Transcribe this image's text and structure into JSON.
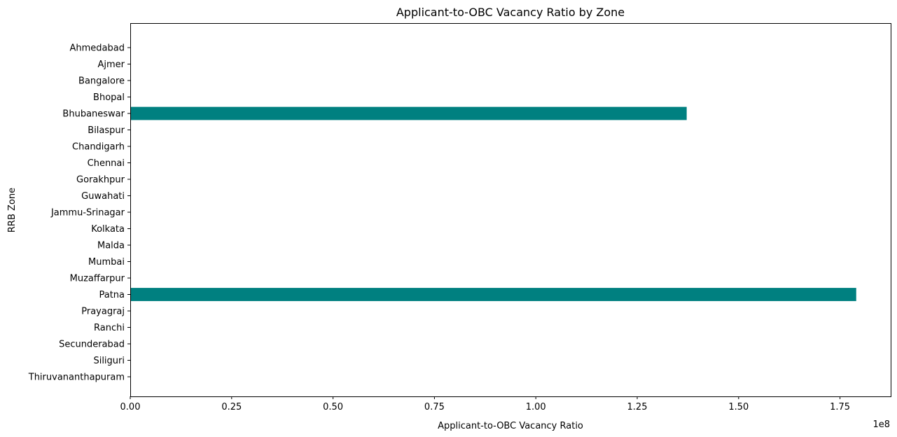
{
  "chart_data": {
    "type": "bar",
    "orientation": "horizontal",
    "title": "Applicant-to-OBC Vacancy Ratio by Zone",
    "xlabel": "Applicant-to-OBC Vacancy Ratio",
    "ylabel": "RRB Zone",
    "x_multiplier_label": "1e8",
    "xlim": [
      0,
      1.875
    ],
    "xticks": [
      0.0,
      0.25,
      0.5,
      0.75,
      1.0,
      1.25,
      1.5,
      1.75
    ],
    "xtick_labels": [
      "0.00",
      "0.25",
      "0.50",
      "0.75",
      "1.00",
      "1.25",
      "1.50",
      "1.75"
    ],
    "grid": false,
    "bar_color": "#008080",
    "categories": [
      "Ahmedabad",
      "Ajmer",
      "Bangalore",
      "Bhopal",
      "Bhubaneswar",
      "Bilaspur",
      "Chandigarh",
      "Chennai",
      "Gorakhpur",
      "Guwahati",
      "Jammu-Srinagar",
      "Kolkata",
      "Malda",
      "Mumbai",
      "Muzaffarpur",
      "Patna",
      "Prayagraj",
      "Ranchi",
      "Secunderabad",
      "Siliguri",
      "Thiruvananthapuram"
    ],
    "values": [
      0,
      0,
      0,
      0,
      1.372,
      0,
      0,
      0,
      0,
      0,
      0,
      0,
      0,
      0,
      0,
      1.79,
      0,
      0,
      0,
      0,
      0
    ]
  }
}
